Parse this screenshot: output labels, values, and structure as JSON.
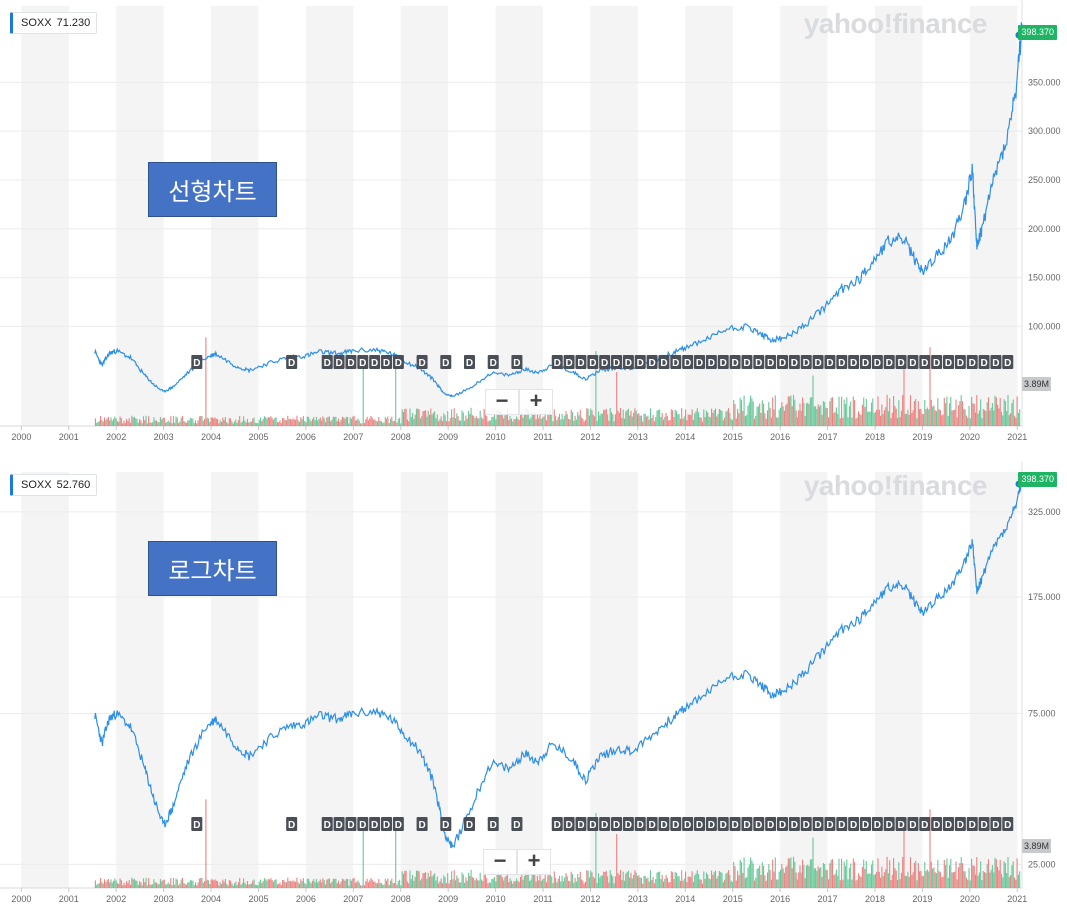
{
  "colors": {
    "line": "#2e8fe6",
    "vol_up": "#4dc088",
    "vol_down": "#ef6a6a",
    "band": "#f4f4f4",
    "accent": "#1b7bd9",
    "price_tag": "#1fb464",
    "dividend_badge": "#4a4f57",
    "annotation_box": "#4472c4"
  },
  "watermark": "yahoo!finance",
  "zoom": {
    "minus_label": "−",
    "plus_label": "+"
  },
  "dividend_label": "D",
  "panels": [
    {
      "annotation": "선형차트",
      "ticker": {
        "symbol": "SOXX",
        "value": "71.230"
      },
      "price_tag": "398.370",
      "volume_tag": "3.89M"
    },
    {
      "annotation": "로그차트",
      "ticker": {
        "symbol": "SOXX",
        "value": "52.760"
      },
      "price_tag": "398.370",
      "volume_tag": "3.89M"
    }
  ],
  "chart_data": [
    {
      "type": "line",
      "scale": "linear",
      "series": [
        {
          "values_x": [
            2001.55,
            2001.7,
            2001.85,
            2002.0,
            2002.3,
            2002.6,
            2002.8,
            2003.0,
            2003.2,
            2003.5,
            2003.9,
            2004.1,
            2004.5,
            2004.8,
            2005.2,
            2005.6,
            2006.0,
            2006.3,
            2006.7,
            2007.0,
            2007.5,
            2007.8,
            2008.1,
            2008.4,
            2008.7,
            2008.9,
            2009.1,
            2009.5,
            2009.9,
            2010.3,
            2010.6,
            2010.9,
            2011.2,
            2011.6,
            2011.9,
            2012.2,
            2012.6,
            2012.9,
            2013.3,
            2013.7,
            2014.0,
            2014.5,
            2014.9,
            2015.3,
            2015.6,
            2015.8,
            2016.1,
            2016.5,
            2016.9,
            2017.3,
            2017.7,
            2018.0,
            2018.3,
            2018.6,
            2018.8,
            2019.0,
            2019.3,
            2019.6,
            2019.9,
            2020.05,
            2020.15,
            2020.25,
            2020.5,
            2020.8,
            2021.0,
            2021.1
          ],
          "values_y": [
            74,
            60,
            72,
            75,
            68,
            50,
            40,
            33,
            38,
            52,
            68,
            72,
            60,
            55,
            62,
            68,
            70,
            74,
            72,
            75,
            76,
            72,
            64,
            57,
            45,
            32,
            28,
            38,
            52,
            50,
            56,
            53,
            60,
            54,
            46,
            55,
            58,
            57,
            64,
            72,
            78,
            88,
            98,
            100,
            92,
            86,
            88,
            100,
            118,
            138,
            150,
            170,
            188,
            190,
            172,
            156,
            172,
            188,
            228,
            262,
            180,
            200,
            250,
            295,
            350,
            410
          ]
        }
      ],
      "y_ticks": [
        "100.000",
        "150.000",
        "200.000",
        "250.000",
        "300.000",
        "350.000"
      ],
      "ylim": [
        0,
        420
      ],
      "x_ticks": [
        "2000",
        "2001",
        "2002",
        "2003",
        "2004",
        "2005",
        "2006",
        "2007",
        "2008",
        "2009",
        "2010",
        "2011",
        "2012",
        "2013",
        "2014",
        "2015",
        "2016",
        "2017",
        "2018",
        "2019",
        "2020",
        "2021"
      ],
      "grid": true
    },
    {
      "type": "line",
      "scale": "log",
      "series": [
        {
          "values_x": [
            2001.55,
            2001.7,
            2001.85,
            2002.0,
            2002.3,
            2002.6,
            2002.8,
            2003.0,
            2003.2,
            2003.5,
            2003.9,
            2004.1,
            2004.5,
            2004.8,
            2005.2,
            2005.6,
            2006.0,
            2006.3,
            2006.7,
            2007.0,
            2007.5,
            2007.8,
            2008.1,
            2008.4,
            2008.7,
            2008.9,
            2009.1,
            2009.5,
            2009.9,
            2010.3,
            2010.6,
            2010.9,
            2011.2,
            2011.6,
            2011.9,
            2012.2,
            2012.6,
            2012.9,
            2013.3,
            2013.7,
            2014.0,
            2014.5,
            2014.9,
            2015.3,
            2015.6,
            2015.8,
            2016.1,
            2016.5,
            2016.9,
            2017.3,
            2017.7,
            2018.0,
            2018.3,
            2018.6,
            2018.8,
            2019.0,
            2019.3,
            2019.6,
            2019.9,
            2020.05,
            2020.15,
            2020.25,
            2020.5,
            2020.8,
            2021.0,
            2021.1
          ],
          "values_y": [
            74,
            60,
            72,
            75,
            68,
            50,
            40,
            33,
            38,
            52,
            68,
            72,
            60,
            55,
            62,
            68,
            70,
            74,
            72,
            75,
            76,
            72,
            64,
            57,
            45,
            32,
            28,
            38,
            52,
            50,
            56,
            53,
            60,
            54,
            46,
            55,
            58,
            57,
            64,
            72,
            78,
            88,
            98,
            100,
            92,
            86,
            88,
            100,
            118,
            138,
            150,
            170,
            188,
            190,
            172,
            156,
            172,
            188,
            228,
            262,
            180,
            200,
            250,
            295,
            350,
            410
          ]
        }
      ],
      "y_ticks": [
        "25.000",
        "75.000",
        "175.000",
        "325.000"
      ],
      "ylim": [
        22,
        410
      ],
      "x_ticks": [
        "2000",
        "2001",
        "2002",
        "2003",
        "2004",
        "2005",
        "2006",
        "2007",
        "2008",
        "2009",
        "2010",
        "2011",
        "2012",
        "2013",
        "2014",
        "2015",
        "2016",
        "2017",
        "2018",
        "2019",
        "2020",
        "2021"
      ],
      "grid": true
    }
  ]
}
